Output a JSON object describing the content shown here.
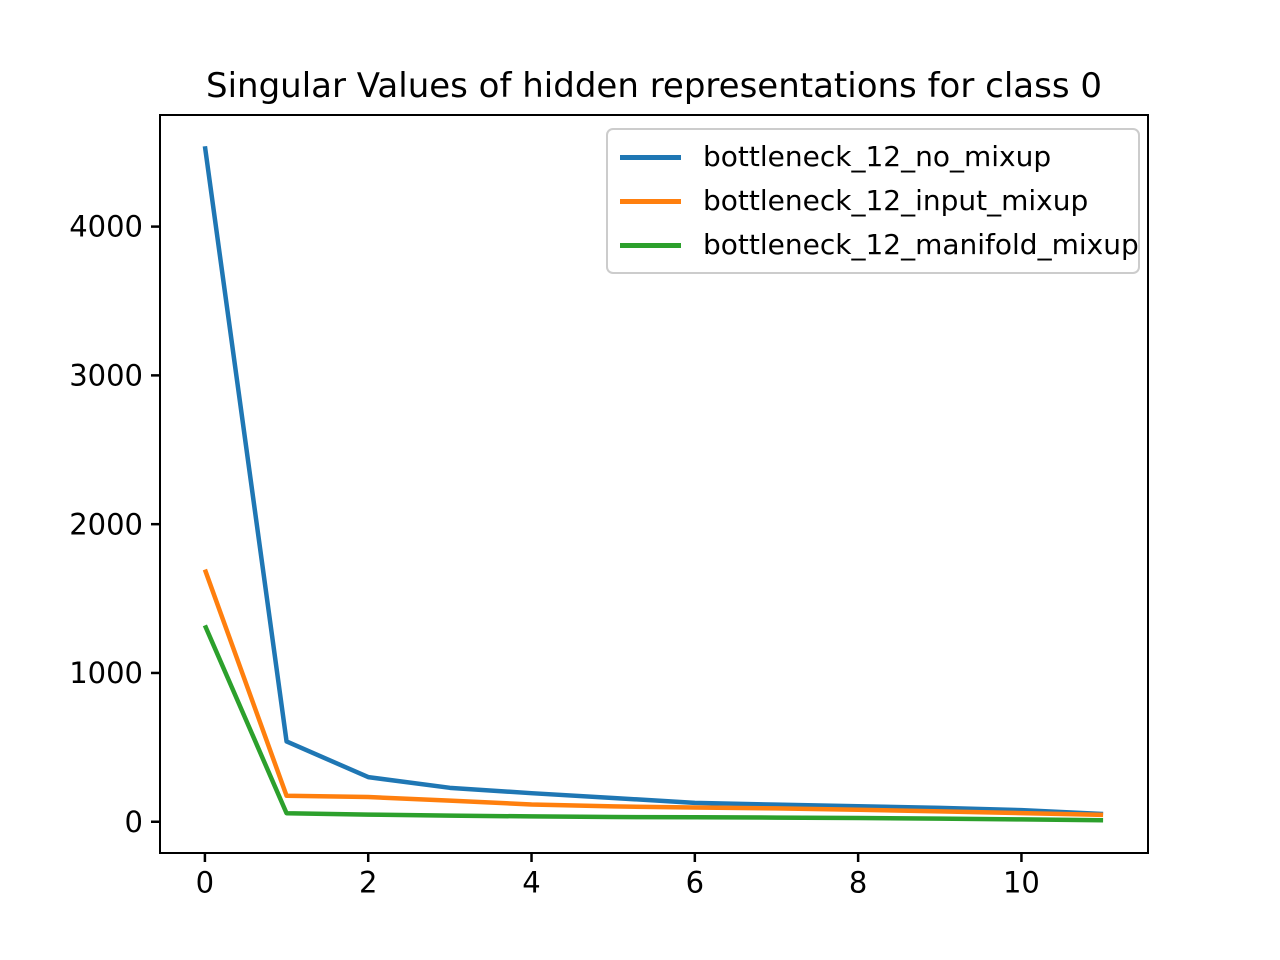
{
  "chart_data": {
    "type": "line",
    "title": "Singular Values of hidden representations for class 0",
    "xlabel": "",
    "ylabel": "",
    "x": [
      0,
      1,
      2,
      3,
      4,
      5,
      6,
      7,
      8,
      9,
      10,
      11
    ],
    "series": [
      {
        "name": "bottleneck_12_no_mixup",
        "color": "#1f77b4",
        "values": [
          4540,
          540,
          300,
          228,
          192,
          160,
          127,
          115,
          104,
          93,
          78,
          52
        ]
      },
      {
        "name": "bottleneck_12_input_mixup",
        "color": "#ff7f0e",
        "values": [
          1695,
          175,
          166,
          142,
          116,
          103,
          96,
          90,
          81,
          70,
          58,
          46
        ]
      },
      {
        "name": "bottleneck_12_manifold_mixup",
        "color": "#2ca02c",
        "values": [
          1320,
          57,
          48,
          41,
          36,
          32,
          30,
          28,
          25,
          21,
          16,
          10
        ]
      }
    ],
    "xticks": [
      0,
      2,
      4,
      6,
      8,
      10
    ],
    "yticks": [
      0,
      1000,
      2000,
      3000,
      4000
    ],
    "xlim": [
      -0.55,
      11.55
    ],
    "ylim": [
      -210,
      4750
    ],
    "grid": false,
    "legend_position": "upper right",
    "line_width": 4.5,
    "spine_color": "#000000",
    "background_color": "#ffffff"
  }
}
